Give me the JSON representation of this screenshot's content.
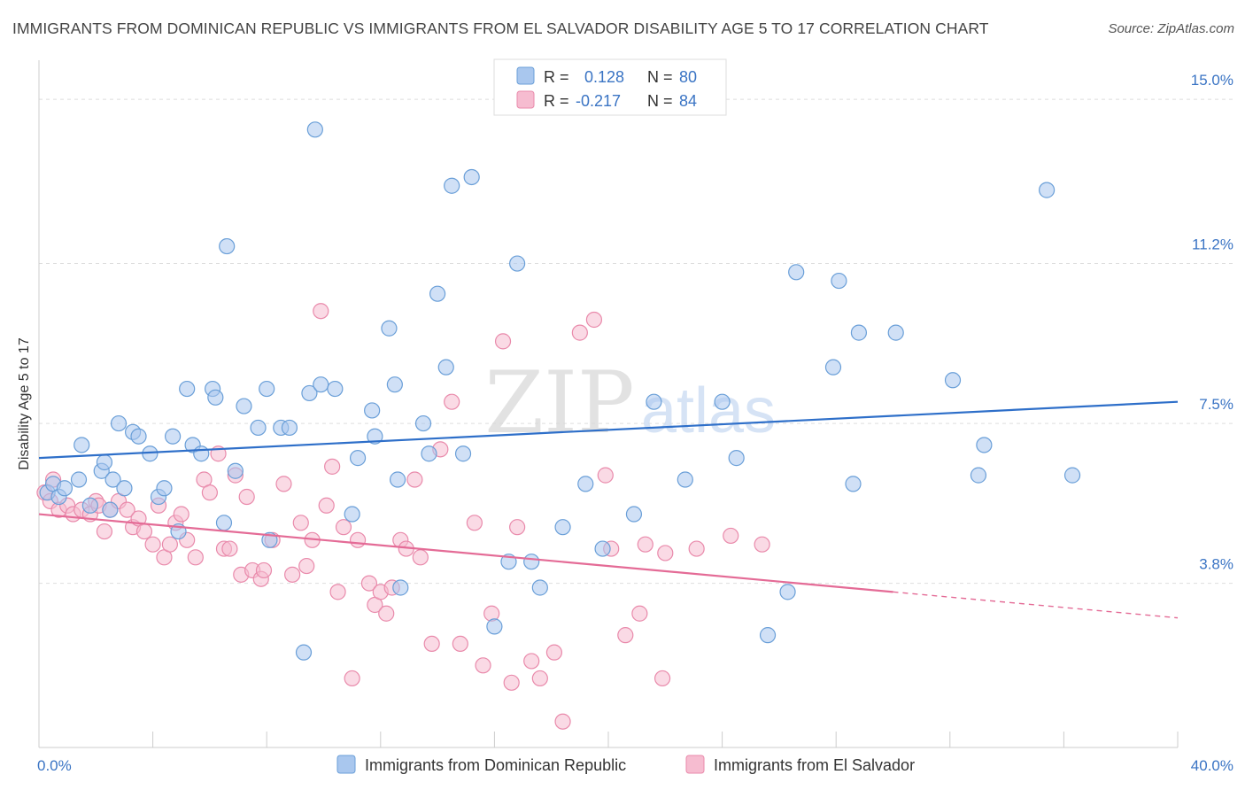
{
  "title": "IMMIGRANTS FROM DOMINICAN REPUBLIC VS IMMIGRANTS FROM EL SALVADOR DISABILITY AGE 5 TO 17 CORRELATION CHART",
  "source": "Source: ZipAtlas.com",
  "watermark": {
    "zip": "ZIP",
    "atlas": "atlas"
  },
  "colors": {
    "blue_fill": "#a9c7ee",
    "blue_stroke": "#6a9fd8",
    "blue_line": "#2e6fc9",
    "pink_fill": "#f6bcd0",
    "pink_stroke": "#e98aab",
    "pink_line": "#e46b96",
    "axis_label": "#3a74c4",
    "grid": "#dddddd"
  },
  "legend": {
    "rows": [
      {
        "r_label": "R =",
        "r_value": "0.128",
        "n_label": "N =",
        "n_value": "80"
      },
      {
        "r_label": "R =",
        "r_value": "-0.217",
        "n_label": "N =",
        "n_value": "84"
      }
    ]
  },
  "chart_data": {
    "type": "scatter",
    "title": "IMMIGRANTS FROM DOMINICAN REPUBLIC VS IMMIGRANTS FROM EL SALVADOR DISABILITY AGE 5 TO 17 CORRELATION CHART",
    "xlabel": "",
    "ylabel": "Disability Age 5 to 17",
    "xlim": [
      0,
      40
    ],
    "ylim": [
      0,
      15.7
    ],
    "x_tick_labels": [
      {
        "value": 0,
        "label": "0.0%"
      },
      {
        "value": 40,
        "label": "40.0%"
      }
    ],
    "y_tick_labels": [
      {
        "value": 3.8,
        "label": "3.8%"
      },
      {
        "value": 7.5,
        "label": "7.5%"
      },
      {
        "value": 11.2,
        "label": "11.2%"
      },
      {
        "value": 15.0,
        "label": "15.0%"
      }
    ],
    "x_minor_ticks": [
      0,
      4,
      8,
      12,
      16,
      20,
      24,
      28,
      32,
      36,
      40
    ],
    "grid": true,
    "legend_position": "top-center",
    "series": [
      {
        "name": "Immigrants from Dominican Republic",
        "r": 0.128,
        "n": 80,
        "trend": {
          "x": [
            0,
            40
          ],
          "y": [
            6.7,
            8.0
          ],
          "dashed_from": null
        },
        "points": [
          [
            0.3,
            5.9
          ],
          [
            0.5,
            6.1
          ],
          [
            0.7,
            5.8
          ],
          [
            0.9,
            6.0
          ],
          [
            1.4,
            6.2
          ],
          [
            1.5,
            7.0
          ],
          [
            1.8,
            5.6
          ],
          [
            2.2,
            6.4
          ],
          [
            2.3,
            6.6
          ],
          [
            2.5,
            5.5
          ],
          [
            2.6,
            6.2
          ],
          [
            2.8,
            7.5
          ],
          [
            3.0,
            6.0
          ],
          [
            3.3,
            7.3
          ],
          [
            3.5,
            7.2
          ],
          [
            3.9,
            6.8
          ],
          [
            4.2,
            5.8
          ],
          [
            4.4,
            6.0
          ],
          [
            4.7,
            7.2
          ],
          [
            4.9,
            5.0
          ],
          [
            5.2,
            8.3
          ],
          [
            5.4,
            7.0
          ],
          [
            5.7,
            6.8
          ],
          [
            6.1,
            8.3
          ],
          [
            6.2,
            8.1
          ],
          [
            6.5,
            5.2
          ],
          [
            6.6,
            11.6
          ],
          [
            6.9,
            6.4
          ],
          [
            7.2,
            7.9
          ],
          [
            7.7,
            7.4
          ],
          [
            8.0,
            8.3
          ],
          [
            8.1,
            4.8
          ],
          [
            8.5,
            7.4
          ],
          [
            8.8,
            7.4
          ],
          [
            9.3,
            2.2
          ],
          [
            9.5,
            8.2
          ],
          [
            9.7,
            14.3
          ],
          [
            9.9,
            8.4
          ],
          [
            10.4,
            8.3
          ],
          [
            11.0,
            5.4
          ],
          [
            11.2,
            6.7
          ],
          [
            11.7,
            7.8
          ],
          [
            11.8,
            7.2
          ],
          [
            12.3,
            9.7
          ],
          [
            12.5,
            8.4
          ],
          [
            12.6,
            6.2
          ],
          [
            12.7,
            3.7
          ],
          [
            13.5,
            7.5
          ],
          [
            13.7,
            6.8
          ],
          [
            14.0,
            10.5
          ],
          [
            14.3,
            8.8
          ],
          [
            14.5,
            13.0
          ],
          [
            14.9,
            6.8
          ],
          [
            15.2,
            13.2
          ],
          [
            16.0,
            2.8
          ],
          [
            16.5,
            4.3
          ],
          [
            16.8,
            11.2
          ],
          [
            17.3,
            4.3
          ],
          [
            17.6,
            3.7
          ],
          [
            18.4,
            5.1
          ],
          [
            19.2,
            6.1
          ],
          [
            19.8,
            4.6
          ],
          [
            20.9,
            5.4
          ],
          [
            21.6,
            8.0
          ],
          [
            22.7,
            6.2
          ],
          [
            24.0,
            8.0
          ],
          [
            24.5,
            6.7
          ],
          [
            25.6,
            2.6
          ],
          [
            26.3,
            3.6
          ],
          [
            26.6,
            11.0
          ],
          [
            27.9,
            8.8
          ],
          [
            28.1,
            10.8
          ],
          [
            28.6,
            6.1
          ],
          [
            28.8,
            9.6
          ],
          [
            30.1,
            9.6
          ],
          [
            32.1,
            8.5
          ],
          [
            33.0,
            6.3
          ],
          [
            33.2,
            7.0
          ],
          [
            35.4,
            12.9
          ],
          [
            36.3,
            6.3
          ]
        ]
      },
      {
        "name": "Immigrants from El Salvador",
        "r": -0.217,
        "n": 84,
        "trend": {
          "x": [
            0,
            40
          ],
          "y": [
            5.4,
            3.0
          ],
          "dashed_from": 30
        },
        "points": [
          [
            0.2,
            5.9
          ],
          [
            0.4,
            5.7
          ],
          [
            0.5,
            6.2
          ],
          [
            0.7,
            5.5
          ],
          [
            1.0,
            5.6
          ],
          [
            1.2,
            5.4
          ],
          [
            1.5,
            5.5
          ],
          [
            1.8,
            5.4
          ],
          [
            2.0,
            5.7
          ],
          [
            2.1,
            5.6
          ],
          [
            2.3,
            5.0
          ],
          [
            2.5,
            5.5
          ],
          [
            2.8,
            5.7
          ],
          [
            3.1,
            5.5
          ],
          [
            3.3,
            5.1
          ],
          [
            3.5,
            5.3
          ],
          [
            3.7,
            5.0
          ],
          [
            4.0,
            4.7
          ],
          [
            4.2,
            5.6
          ],
          [
            4.4,
            4.4
          ],
          [
            4.6,
            4.7
          ],
          [
            4.8,
            5.2
          ],
          [
            5.0,
            5.4
          ],
          [
            5.2,
            4.8
          ],
          [
            5.5,
            4.4
          ],
          [
            5.8,
            6.2
          ],
          [
            6.0,
            5.9
          ],
          [
            6.3,
            6.8
          ],
          [
            6.5,
            4.6
          ],
          [
            6.7,
            4.6
          ],
          [
            6.9,
            6.3
          ],
          [
            7.1,
            4.0
          ],
          [
            7.3,
            5.8
          ],
          [
            7.5,
            4.1
          ],
          [
            7.8,
            3.9
          ],
          [
            7.9,
            4.1
          ],
          [
            8.2,
            4.8
          ],
          [
            8.6,
            6.1
          ],
          [
            8.9,
            4.0
          ],
          [
            9.2,
            5.2
          ],
          [
            9.4,
            4.2
          ],
          [
            9.6,
            4.8
          ],
          [
            9.9,
            10.1
          ],
          [
            10.1,
            5.6
          ],
          [
            10.3,
            6.5
          ],
          [
            10.5,
            3.6
          ],
          [
            10.7,
            5.1
          ],
          [
            11.0,
            1.6
          ],
          [
            11.2,
            4.8
          ],
          [
            11.6,
            3.8
          ],
          [
            11.8,
            3.3
          ],
          [
            12.0,
            3.6
          ],
          [
            12.2,
            3.1
          ],
          [
            12.4,
            3.7
          ],
          [
            12.7,
            4.8
          ],
          [
            12.9,
            4.6
          ],
          [
            13.2,
            6.2
          ],
          [
            13.4,
            4.4
          ],
          [
            13.8,
            2.4
          ],
          [
            14.1,
            6.9
          ],
          [
            14.5,
            8.0
          ],
          [
            14.8,
            2.4
          ],
          [
            15.3,
            5.2
          ],
          [
            15.6,
            1.9
          ],
          [
            15.9,
            3.1
          ],
          [
            16.3,
            9.4
          ],
          [
            16.6,
            1.5
          ],
          [
            16.8,
            5.1
          ],
          [
            17.3,
            2.0
          ],
          [
            17.6,
            1.6
          ],
          [
            18.1,
            2.2
          ],
          [
            18.4,
            0.6
          ],
          [
            19.0,
            9.6
          ],
          [
            19.5,
            9.9
          ],
          [
            19.9,
            6.3
          ],
          [
            20.1,
            4.6
          ],
          [
            20.6,
            2.6
          ],
          [
            21.1,
            3.1
          ],
          [
            21.3,
            4.7
          ],
          [
            21.9,
            1.6
          ],
          [
            22.0,
            4.5
          ],
          [
            23.1,
            4.6
          ],
          [
            24.3,
            4.9
          ],
          [
            25.4,
            4.7
          ]
        ]
      }
    ]
  },
  "legend_bottom": [
    {
      "label": "Immigrants from Dominican Republic"
    },
    {
      "label": "Immigrants from El Salvador"
    }
  ]
}
